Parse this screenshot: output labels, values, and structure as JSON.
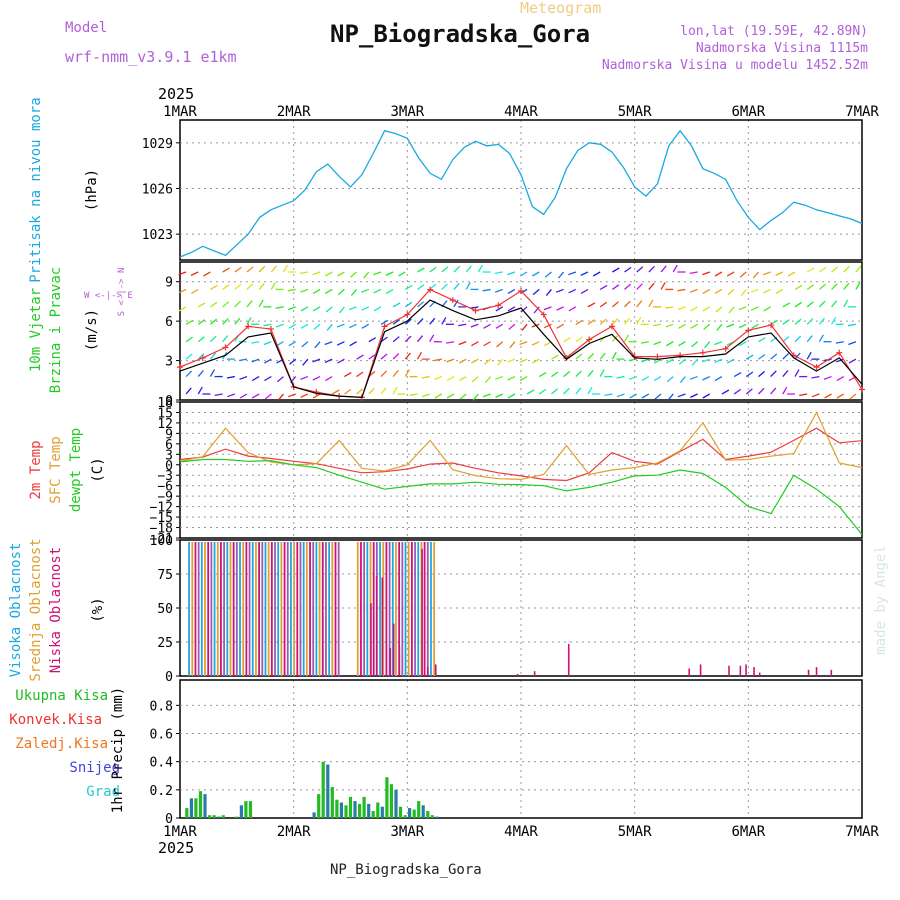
{
  "header": {
    "model_label": "Model",
    "model_name": "wrf-nmm_v3.9.1 e1km",
    "product": "Meteogram",
    "station_title": "NP_Biogradska_Gora",
    "lonlat": "lon,lat (19.59E, 42.89N)",
    "elevation": "Nadmorska Visina 1115m",
    "model_elevation": "Nadmorska Visina u modelu 1452.52m",
    "credit": "made by Angel",
    "footer_station": "NP_Biogradska_Gora"
  },
  "colors": {
    "pressure": "#1ba8e0",
    "wind_speed": "#000000",
    "wind_gust": "#ee3333",
    "t2m": "#ee3c3c",
    "tsfc": "#e0a030",
    "dewpoint": "#22cc22",
    "cloud_high": "#1ba8e0",
    "cloud_mid": "#e0a030",
    "cloud_low": "#cc1177",
    "precip_total": "#22bb22",
    "precip_conv": "#ee3333",
    "precip_frozen": "#ee7722",
    "snow": "#4444dd",
    "graupel": "#22cccc"
  },
  "chart_data": [
    {
      "type": "line",
      "panel": "pressure",
      "ylabel_left": "Pritisak na nivou mora",
      "unit": "(hPa)",
      "year_label": "2025",
      "xticks": [
        "1MAR",
        "2MAR",
        "3MAR",
        "4MAR",
        "5MAR",
        "6MAR",
        "7MAR"
      ],
      "xlim": [
        0,
        6
      ],
      "yticks": [
        1023,
        1026,
        1029
      ],
      "ylim": [
        1021.3,
        1030.5
      ],
      "grid": true,
      "x": [
        0,
        0.1,
        0.2,
        0.3,
        0.4,
        0.5,
        0.6,
        0.7,
        0.8,
        0.9,
        1.0,
        1.1,
        1.2,
        1.3,
        1.4,
        1.5,
        1.6,
        1.7,
        1.8,
        1.9,
        2.0,
        2.1,
        2.2,
        2.3,
        2.4,
        2.5,
        2.6,
        2.7,
        2.8,
        2.9,
        3.0,
        3.1,
        3.2,
        3.3,
        3.4,
        3.5,
        3.6,
        3.7,
        3.8,
        3.9,
        4.0,
        4.1,
        4.2,
        4.3,
        4.4,
        4.5,
        4.6,
        4.7,
        4.8,
        4.9,
        5.0,
        5.1,
        5.2,
        5.3,
        5.4,
        5.5,
        5.6,
        5.7,
        5.8,
        5.9,
        6.0
      ],
      "values": [
        1021.5,
        1021.8,
        1022.2,
        1021.9,
        1021.6,
        1022.3,
        1023.0,
        1024.1,
        1024.6,
        1024.9,
        1025.2,
        1025.9,
        1027.1,
        1027.6,
        1026.8,
        1026.1,
        1026.9,
        1028.3,
        1029.8,
        1029.6,
        1029.3,
        1028.0,
        1027.0,
        1026.6,
        1027.9,
        1028.7,
        1029.1,
        1028.8,
        1028.9,
        1028.3,
        1026.9,
        1024.8,
        1024.3,
        1025.4,
        1027.3,
        1028.5,
        1029.0,
        1028.9,
        1028.4,
        1027.4,
        1026.1,
        1025.5,
        1026.3,
        1028.8,
        1029.8,
        1028.8,
        1027.3,
        1027.0,
        1026.6,
        1025.2,
        1024.1,
        1023.3,
        1023.9,
        1024.4,
        1025.1,
        1024.9,
        1024.6,
        1024.4,
        1024.2,
        1024.0,
        1023.7
      ]
    },
    {
      "type": "line",
      "panel": "wind",
      "ylabel_left": "10m Vjetar Brzina i Pravac",
      "unit": "(m/s)",
      "compass_label": "W <-|-> E  N  S",
      "yticks": [
        0,
        3,
        6,
        9
      ],
      "ylim": [
        0,
        10.5
      ],
      "grid": true,
      "series": [
        {
          "role": "speed",
          "x": [
            0,
            0.2,
            0.4,
            0.6,
            0.8,
            1.0,
            1.2,
            1.4,
            1.6,
            1.8,
            2.0,
            2.2,
            2.4,
            2.6,
            2.8,
            3.0,
            3.2,
            3.4,
            3.6,
            3.8,
            4.0,
            4.2,
            4.4,
            4.6,
            4.8,
            5.0,
            5.2,
            5.4,
            5.6,
            5.8,
            6.0
          ],
          "values": [
            2.2,
            2.8,
            3.4,
            4.8,
            5.1,
            1.0,
            0.5,
            0.3,
            0.2,
            5.2,
            6.0,
            7.6,
            6.8,
            6.1,
            6.4,
            7.0,
            5.0,
            3.1,
            4.3,
            5.0,
            3.2,
            3.1,
            3.3,
            3.3,
            3.5,
            4.8,
            5.1,
            3.2,
            2.2,
            3.2,
            1.2
          ]
        },
        {
          "role": "gust",
          "x": [
            0,
            0.2,
            0.4,
            0.6,
            0.8,
            1.0,
            1.2,
            1.4,
            1.6,
            1.8,
            2.0,
            2.2,
            2.4,
            2.6,
            2.8,
            3.0,
            3.2,
            3.4,
            3.6,
            3.8,
            4.0,
            4.2,
            4.4,
            4.6,
            4.8,
            5.0,
            5.2,
            5.4,
            5.6,
            5.8,
            6.0
          ],
          "values": [
            2.5,
            3.2,
            4.0,
            5.6,
            5.4,
            1.0,
            0.6,
            0.3,
            0.2,
            5.6,
            6.5,
            8.4,
            7.6,
            6.8,
            7.2,
            8.3,
            6.5,
            3.2,
            4.6,
            5.6,
            3.3,
            3.3,
            3.4,
            3.6,
            3.9,
            5.3,
            5.7,
            3.4,
            2.5,
            3.6,
            0.8
          ]
        }
      ]
    },
    {
      "type": "line",
      "panel": "temperature",
      "ylabel_left": [
        "2m Temp",
        "SFC Temp",
        "dewpt Temp"
      ],
      "unit": "(C)",
      "yticks": [
        18,
        15,
        12,
        9,
        6,
        3,
        0,
        -3,
        -6,
        -9,
        -12,
        -15,
        -18,
        -21
      ],
      "ylim": [
        -21,
        18
      ],
      "grid": true,
      "series": [
        {
          "name": "2m Temp",
          "x": [
            0,
            0.2,
            0.4,
            0.6,
            0.8,
            1.0,
            1.2,
            1.4,
            1.6,
            1.8,
            2.0,
            2.2,
            2.4,
            2.6,
            2.8,
            3.0,
            3.2,
            3.4,
            3.6,
            3.8,
            4.0,
            4.2,
            4.4,
            4.6,
            4.8,
            5.0,
            5.2,
            5.4,
            5.6,
            5.8,
            6.0
          ],
          "values": [
            1.5,
            2.2,
            4.5,
            2.5,
            1.8,
            1.0,
            0.3,
            -1.0,
            -2.3,
            -2.0,
            -1.2,
            0.2,
            0.5,
            -1.0,
            -2.3,
            -3.2,
            -4.2,
            -4.5,
            -2.3,
            3.5,
            1.0,
            0.2,
            3.8,
            7.3,
            1.5,
            2.5,
            3.6,
            7.0,
            10.5,
            6.3,
            6.9
          ]
        },
        {
          "name": "SFC Temp",
          "x": [
            0,
            0.2,
            0.4,
            0.6,
            0.8,
            1.0,
            1.2,
            1.4,
            1.6,
            1.8,
            2.0,
            2.2,
            2.4,
            2.6,
            2.8,
            3.0,
            3.2,
            3.4,
            3.6,
            3.8,
            4.0,
            4.2,
            4.4,
            4.6,
            4.8,
            5.0,
            5.2,
            5.4,
            5.6,
            5.8,
            6.0
          ],
          "values": [
            1.0,
            2.3,
            10.5,
            3.5,
            0.8,
            0.0,
            0.3,
            7.0,
            -1.0,
            -1.8,
            0.0,
            7.0,
            -1.4,
            -3.1,
            -4.0,
            -4.2,
            -2.8,
            5.5,
            -2.8,
            -1.5,
            -0.8,
            0.5,
            4.0,
            12.0,
            1.3,
            1.5,
            2.5,
            3.2,
            15.0,
            0.5,
            -0.8
          ]
        },
        {
          "name": "dewpt Temp",
          "x": [
            0,
            0.2,
            0.4,
            0.6,
            0.8,
            1.0,
            1.2,
            1.4,
            1.6,
            1.8,
            2.0,
            2.2,
            2.4,
            2.6,
            2.8,
            3.0,
            3.2,
            3.4,
            3.6,
            3.8,
            4.0,
            4.2,
            4.4,
            4.6,
            4.8,
            5.0,
            5.2,
            5.4,
            5.6,
            5.8,
            6.0
          ],
          "values": [
            0.8,
            1.5,
            1.5,
            1.0,
            1.2,
            0.0,
            -0.8,
            -3.0,
            -5.0,
            -7.0,
            -6.2,
            -5.5,
            -5.5,
            -5.0,
            -5.6,
            -5.7,
            -6.0,
            -7.5,
            -6.5,
            -5.0,
            -3.2,
            -3.0,
            -1.5,
            -2.5,
            -6.5,
            -12.0,
            -14.0,
            -3.0,
            -7.0,
            -12.0,
            -20.0
          ]
        }
      ]
    },
    {
      "type": "bar",
      "panel": "cloud",
      "ylabel_left": [
        "Visoka Oblacnost",
        "Srednja Oblacnost",
        "Niska Oblacnost"
      ],
      "unit": "(%)",
      "yticks": [
        0,
        25,
        50,
        75,
        100
      ],
      "ylim": [
        0,
        100
      ],
      "grid": true
    },
    {
      "type": "bar",
      "panel": "precip",
      "legend_left": [
        "Ukupna Kisa",
        "Konvek.Kisa",
        "Zaledj.Kisa",
        "Snijeg",
        "Grad"
      ],
      "unit": "1hr Precip (mm)",
      "year_label": "2025",
      "xticks": [
        "1MAR",
        "2MAR",
        "3MAR",
        "4MAR",
        "5MAR",
        "6MAR",
        "7MAR"
      ],
      "yticks": [
        0,
        0.2,
        0.4,
        0.6,
        0.8
      ],
      "ylim": [
        0,
        0.98
      ],
      "grid": true,
      "x": [
        0.06,
        0.1,
        0.14,
        0.18,
        0.22,
        0.26,
        0.3,
        0.34,
        0.38,
        0.5,
        0.54,
        0.58,
        0.62,
        1.18,
        1.22,
        1.26,
        1.3,
        1.34,
        1.38,
        1.42,
        1.46,
        1.5,
        1.54,
        1.58,
        1.62,
        1.66,
        1.7,
        1.74,
        1.78,
        1.82,
        1.86,
        1.9,
        1.94,
        1.98,
        2.02,
        2.06,
        2.1,
        2.14,
        2.18,
        2.22,
        2.26
      ],
      "values": [
        0.07,
        0.14,
        0.14,
        0.19,
        0.17,
        0.02,
        0.02,
        0.01,
        0.02,
        0.01,
        0.09,
        0.12,
        0.12,
        0.04,
        0.17,
        0.4,
        0.38,
        0.22,
        0.13,
        0.11,
        0.09,
        0.15,
        0.12,
        0.1,
        0.15,
        0.1,
        0.05,
        0.11,
        0.08,
        0.29,
        0.24,
        0.2,
        0.08,
        0.02,
        0.07,
        0.06,
        0.12,
        0.09,
        0.05,
        0.02,
        0.01
      ]
    }
  ]
}
